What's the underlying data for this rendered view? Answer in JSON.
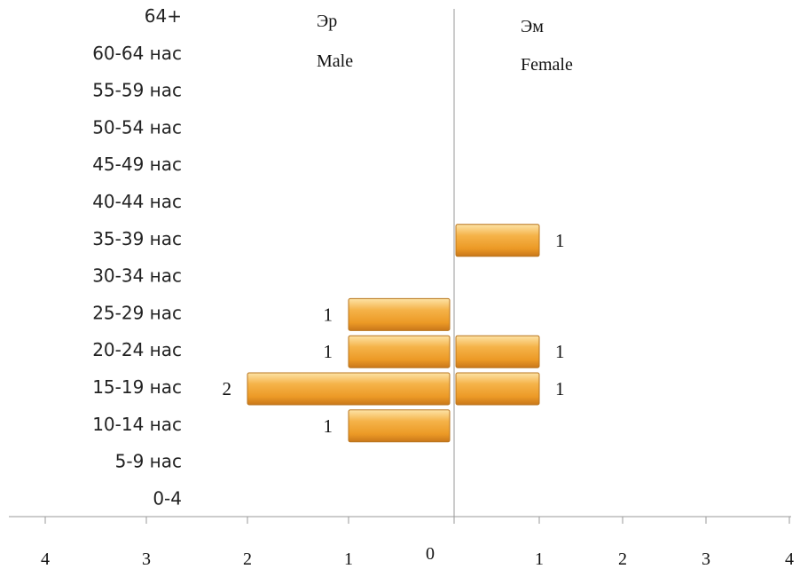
{
  "chart_data": {
    "type": "bar",
    "orientation": "horizontal",
    "layout": "population-pyramid",
    "categories": [
      "64+",
      "60-64 нас",
      "55-59 нас",
      "50-54 нас",
      "45-49 нас",
      "40-44 нас",
      "35-39 нас",
      "30-34 нас",
      "25-29 нас",
      "20-24 нас",
      "15-19 нас",
      "10-14 нас",
      "5-9 нас",
      "0-4"
    ],
    "series": [
      {
        "name": "Эр Male",
        "name_line1": "Эр",
        "name_line2": "Male",
        "values": [
          0,
          0,
          0,
          0,
          0,
          0,
          0,
          0,
          1,
          1,
          2,
          1,
          0,
          0
        ]
      },
      {
        "name": "Эм Female",
        "name_line1": "Эм",
        "name_line2": "Female",
        "values": [
          0,
          0,
          0,
          0,
          0,
          0,
          1,
          0,
          0,
          1,
          1,
          0,
          0,
          0
        ]
      }
    ],
    "xlim_left": [
      0,
      4
    ],
    "xlim_right": [
      0,
      4
    ],
    "x_ticks_left": [
      "4",
      "3",
      "2",
      "1",
      "0"
    ],
    "x_ticks_right": [
      "1",
      "2",
      "3",
      "4"
    ],
    "xlabel": "",
    "ylabel": "",
    "bar_color": "#f0a030",
    "bar_color_light": "#fcd58a",
    "bar_color_dark": "#c9771a",
    "grid": false,
    "legend": "top"
  }
}
